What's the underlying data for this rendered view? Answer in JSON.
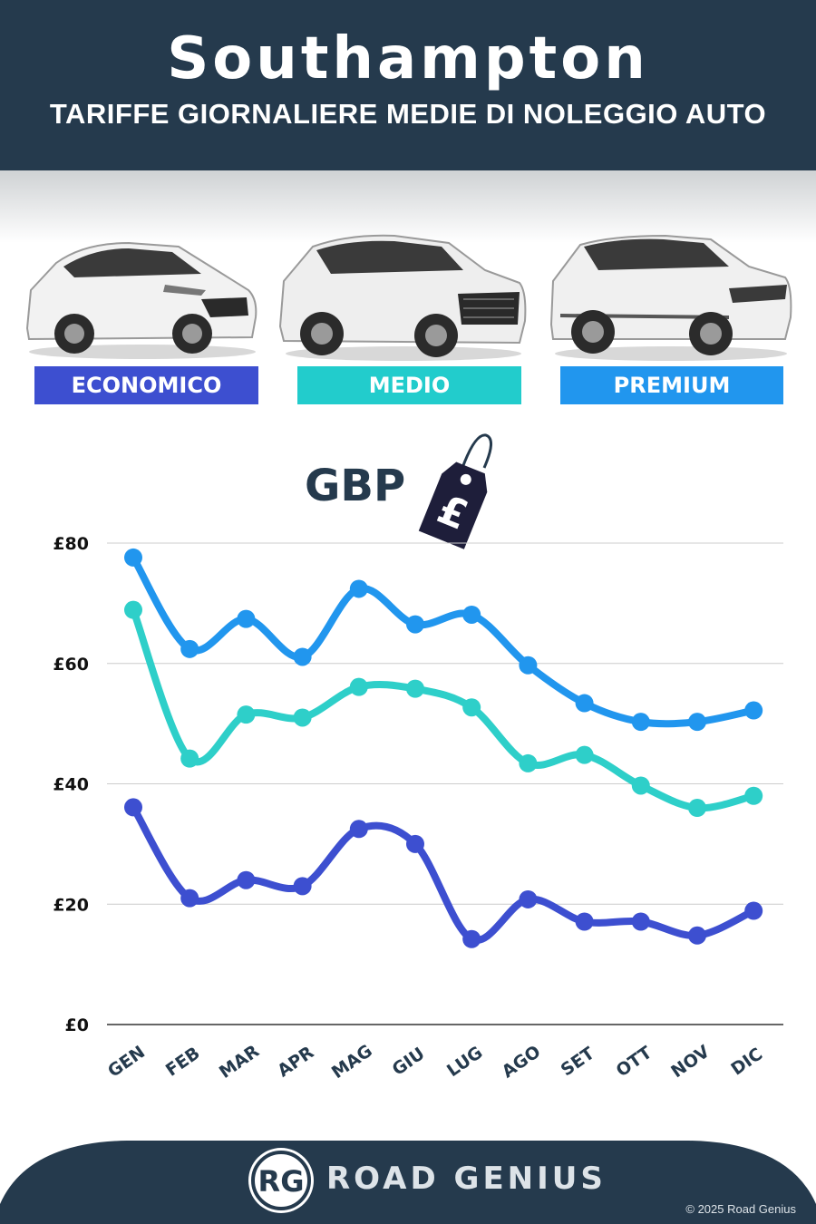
{
  "header": {
    "title": "Southampton",
    "subtitle": "TARIFFE GIORNALIERE MEDIE DI NOLEGGIO AUTO"
  },
  "categories": [
    {
      "label": "ECONOMICO",
      "color": "#3d4fd0"
    },
    {
      "label": "MEDIO",
      "color": "#22cccc"
    },
    {
      "label": "PREMIUM",
      "color": "#2196ee"
    }
  ],
  "currency_label": "GBP",
  "price_tag_symbol": "£",
  "chart_data": {
    "type": "line",
    "categories": [
      "GEN",
      "FEB",
      "MAR",
      "APR",
      "MAG",
      "GIU",
      "LUG",
      "AGO",
      "SET",
      "OTT",
      "NOV",
      "DIC"
    ],
    "y_ticks": [
      "£0",
      "£20",
      "£40",
      "£60",
      "£80"
    ],
    "ylim": [
      0,
      80
    ],
    "grid": true,
    "series": [
      {
        "name": "PREMIUM",
        "color": "#2196ee",
        "values": [
          77.6,
          62.4,
          67.4,
          61.1,
          72.4,
          66.5,
          68.1,
          59.7,
          53.4,
          50.3,
          50.3,
          52.2
        ]
      },
      {
        "name": "MEDIO",
        "color": "#2ecfc9",
        "values": [
          68.9,
          44.2,
          51.5,
          51.0,
          56.1,
          55.8,
          52.7,
          43.4,
          44.8,
          39.7,
          36.0,
          38.0
        ]
      },
      {
        "name": "ECONOMICO",
        "color": "#3d4fd0",
        "values": [
          36.1,
          21.0,
          24.0,
          23.0,
          32.5,
          30.0,
          14.2,
          20.8,
          17.1,
          17.1,
          14.8,
          18.9
        ]
      }
    ]
  },
  "footer": {
    "logo_text": "RG",
    "brand": "ROAD GENIUS",
    "copyright": "© 2025 Road Genius"
  }
}
